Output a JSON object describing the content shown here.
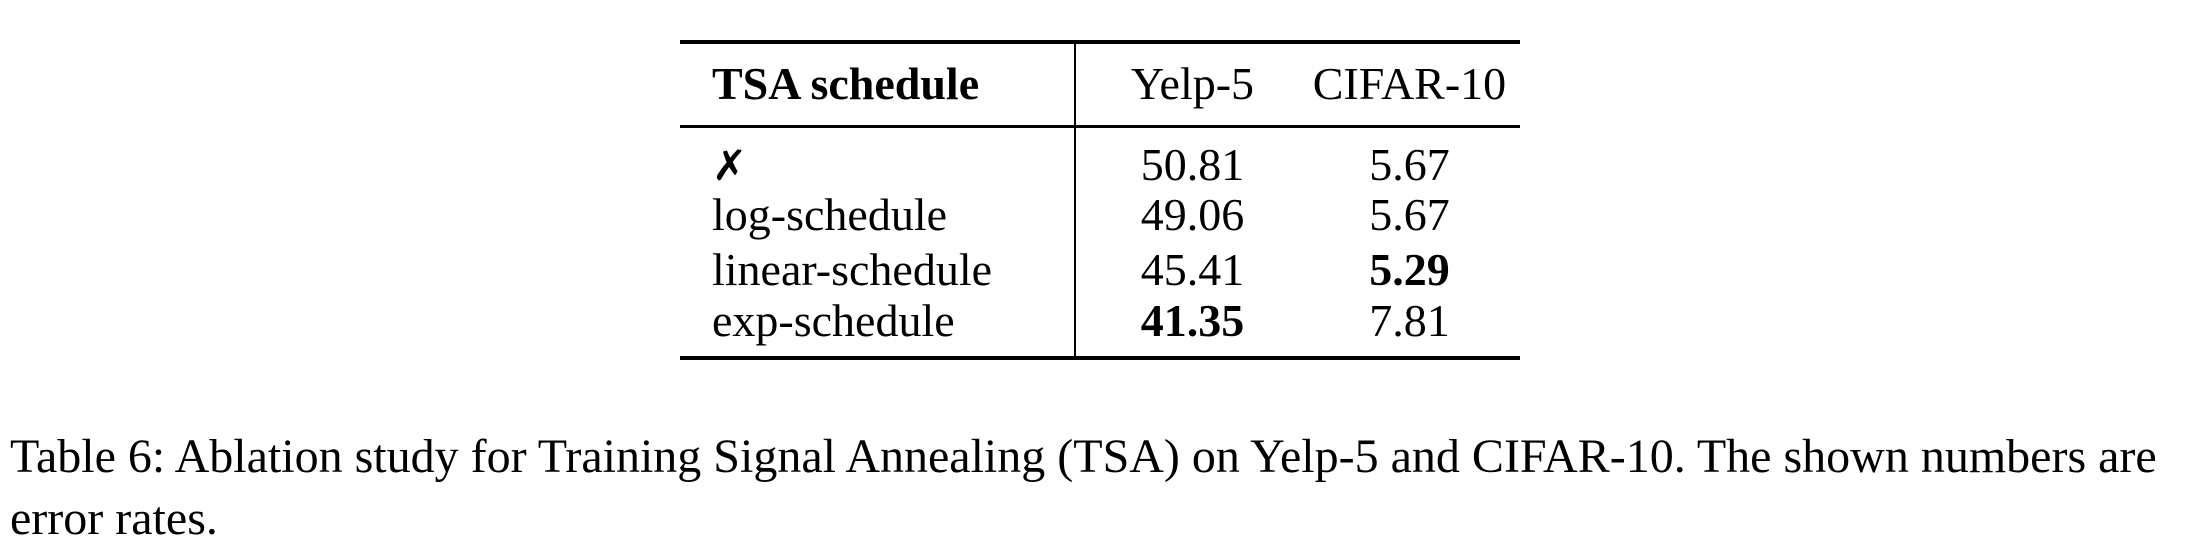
{
  "table": {
    "headers": [
      "TSA schedule",
      "Yelp-5",
      "CIFAR-10"
    ],
    "rows": [
      {
        "schedule": "✗",
        "yelp5": "50.81",
        "cifar10": "5.67"
      },
      {
        "schedule": "log-schedule",
        "yelp5": "49.06",
        "cifar10": "5.67"
      },
      {
        "schedule": "linear-schedule",
        "yelp5": "45.41",
        "cifar10": "5.29"
      },
      {
        "schedule": "exp-schedule",
        "yelp5": "41.35",
        "cifar10": "7.81"
      }
    ],
    "best": {
      "yelp5": "41.35",
      "cifar10": "5.29"
    }
  },
  "caption": {
    "label": "Table 6:",
    "text": "Ablation study for Training Signal Annealing (TSA) on Yelp-5 and CIFAR-10. The shown numbers are error rates."
  }
}
